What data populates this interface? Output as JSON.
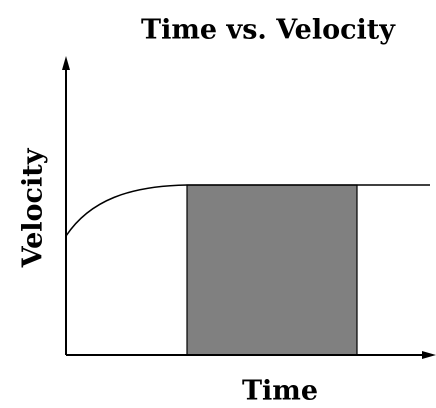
{
  "title": "Time vs. Velocity",
  "x_label": "Time",
  "y_label": "Velocity"
}
